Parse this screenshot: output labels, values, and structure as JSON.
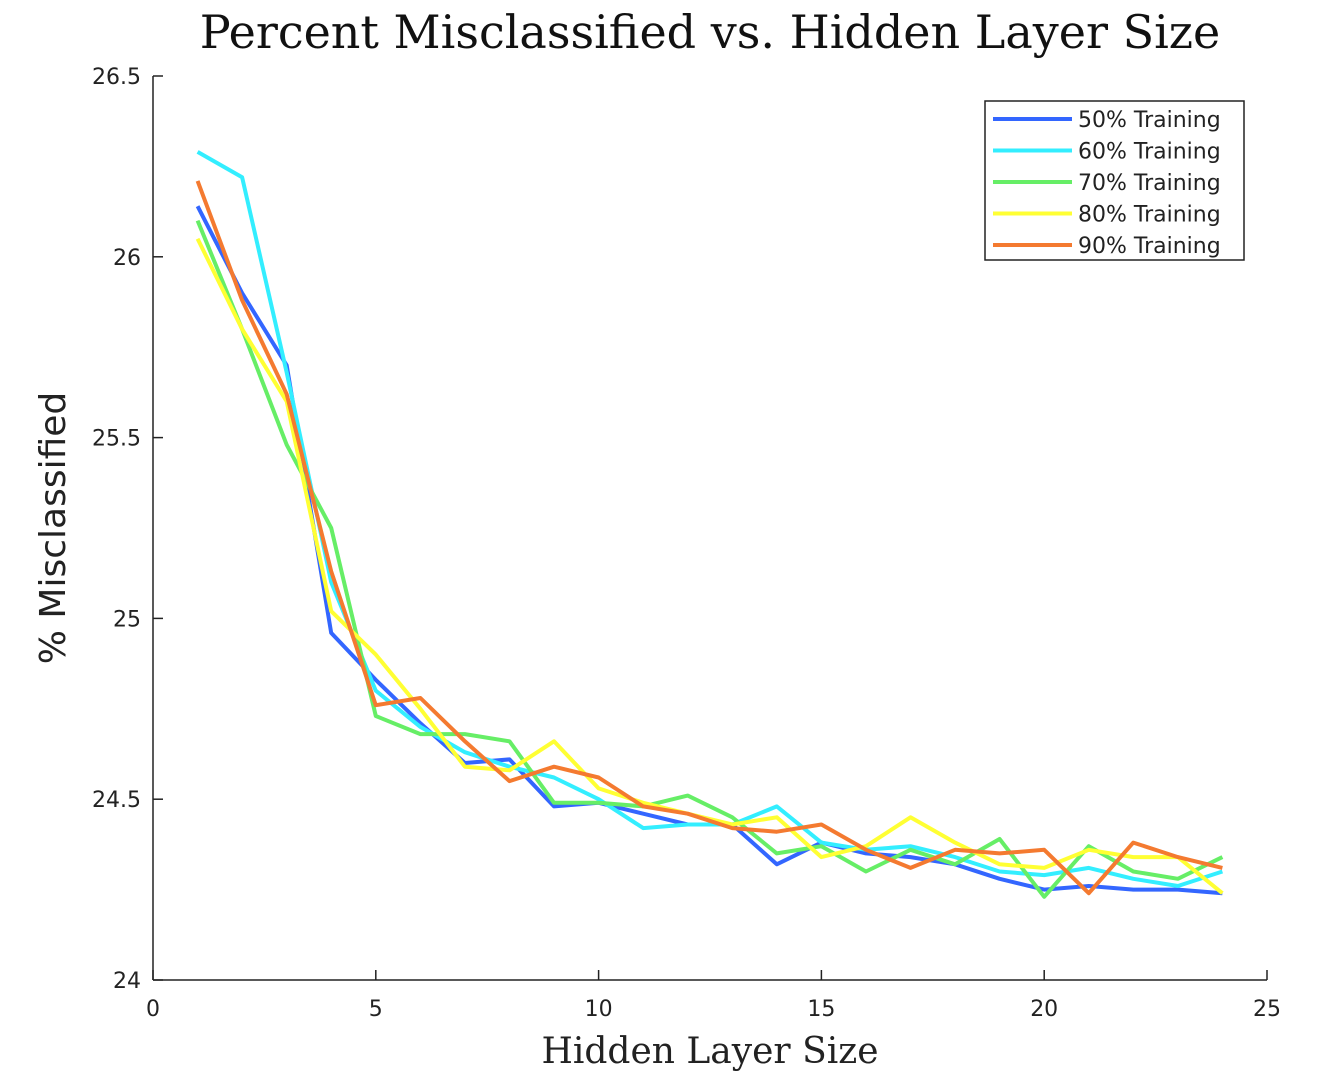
{
  "chart_data": {
    "type": "line",
    "title": "Percent Misclassified vs. Hidden Layer Size",
    "xlabel": "Hidden Layer Size",
    "ylabel": "% Misclassified",
    "xlim": [
      0,
      25
    ],
    "ylim": [
      24,
      26.5
    ],
    "xticks": [
      0,
      5,
      10,
      15,
      20,
      25
    ],
    "yticks": [
      24,
      24.5,
      25,
      25.5,
      26,
      26.5
    ],
    "xtick_labels": [
      "0",
      "5",
      "10",
      "15",
      "20",
      "25"
    ],
    "ytick_labels": [
      "24",
      "24.5",
      "25",
      "25.5",
      "26",
      "26.5"
    ],
    "legend_position": "top-right",
    "x": [
      1,
      2,
      3,
      4,
      5,
      6,
      7,
      8,
      9,
      10,
      11,
      12,
      13,
      14,
      15,
      16,
      17,
      18,
      19,
      20,
      21,
      22,
      23,
      24
    ],
    "series": [
      {
        "name": "50% Training",
        "color": "#3366ff",
        "values": [
          26.14,
          25.9,
          25.7,
          24.96,
          24.83,
          24.71,
          24.6,
          24.61,
          24.48,
          24.49,
          24.46,
          24.43,
          24.43,
          24.32,
          24.38,
          24.35,
          24.34,
          24.32,
          24.28,
          24.25,
          24.26,
          24.25,
          24.25,
          24.24
        ]
      },
      {
        "name": "60% Training",
        "color": "#33eeff",
        "values": [
          26.29,
          26.22,
          25.68,
          25.1,
          24.8,
          24.7,
          24.63,
          24.59,
          24.56,
          24.5,
          24.42,
          24.43,
          24.43,
          24.48,
          24.38,
          24.36,
          24.37,
          24.34,
          24.3,
          24.29,
          24.31,
          24.28,
          24.26,
          24.3
        ]
      },
      {
        "name": "70% Training",
        "color": "#66ee66",
        "values": [
          26.1,
          25.8,
          25.48,
          25.25,
          24.73,
          24.68,
          24.68,
          24.66,
          24.49,
          24.49,
          24.48,
          24.51,
          24.45,
          24.35,
          24.37,
          24.3,
          24.36,
          24.32,
          24.39,
          24.23,
          24.37,
          24.3,
          24.28,
          24.34
        ]
      },
      {
        "name": "80% Training",
        "color": "#ffff33",
        "values": [
          26.05,
          25.8,
          25.6,
          25.02,
          24.9,
          24.75,
          24.59,
          24.58,
          24.66,
          24.53,
          24.49,
          24.46,
          24.43,
          24.45,
          24.34,
          24.37,
          24.45,
          24.38,
          24.32,
          24.31,
          24.36,
          24.34,
          24.34,
          24.24
        ]
      },
      {
        "name": "90% Training",
        "color": "#f47a30",
        "values": [
          26.21,
          25.88,
          25.62,
          25.13,
          24.76,
          24.78,
          24.66,
          24.55,
          24.59,
          24.56,
          24.48,
          24.46,
          24.42,
          24.41,
          24.43,
          24.36,
          24.31,
          24.36,
          24.35,
          24.36,
          24.24,
          24.38,
          24.34,
          24.31
        ]
      }
    ]
  }
}
